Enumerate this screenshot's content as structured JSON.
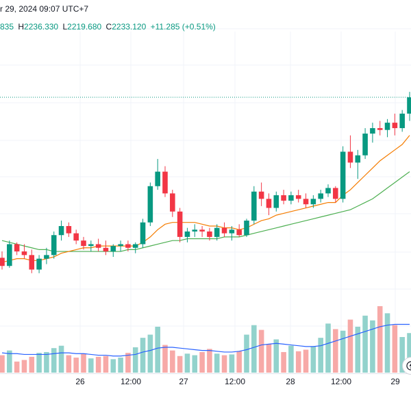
{
  "header": {
    "date_text": "r 29, 2024 09:07 UTC+7",
    "open_text": "835",
    "high_label": "H",
    "high_value": "2236.330",
    "low_label": "L",
    "low_value": "2219.680",
    "close_label": "C",
    "close_value": "2233.120",
    "change_text": "+11.285 (+0.51%)"
  },
  "colors": {
    "up": "#089981",
    "down": "#f23645",
    "vol_up": "#92d2cc",
    "vol_down": "#f7a9a7",
    "ma_fast": "#f57c00",
    "ma_slow": "#4caf50",
    "vol_ma": "#2962ff",
    "grid": "#f0f3fa",
    "price_line": "#089981"
  },
  "x_axis": {
    "labels": [
      "26",
      "12:00",
      "27",
      "12:00",
      "28",
      "12:00",
      "29"
    ]
  },
  "chart_data": {
    "type": "candlestick",
    "series": [
      {
        "name": "candles",
        "ohlc": [
          [
            2176.5,
            2180,
            2170,
            2172
          ],
          [
            2172,
            2186,
            2171,
            2184
          ],
          [
            2184,
            2185,
            2178,
            2180
          ],
          [
            2180,
            2184,
            2176,
            2178
          ],
          [
            2178,
            2181,
            2168,
            2170
          ],
          [
            2170,
            2178,
            2168,
            2176
          ],
          [
            2176,
            2182,
            2173,
            2178
          ],
          [
            2178,
            2191,
            2176,
            2189
          ],
          [
            2189,
            2197,
            2186,
            2194
          ],
          [
            2194,
            2196,
            2188,
            2190
          ],
          [
            2190,
            2192,
            2184,
            2186
          ],
          [
            2186,
            2188,
            2181,
            2183
          ],
          [
            2183,
            2186,
            2180,
            2184
          ],
          [
            2184,
            2187,
            2180,
            2182
          ],
          [
            2182,
            2186,
            2178,
            2180
          ],
          [
            2180,
            2184,
            2177,
            2183
          ],
          [
            2183,
            2186,
            2180,
            2184
          ],
          [
            2184,
            2186,
            2180,
            2182
          ],
          [
            2182,
            2185,
            2179,
            2184
          ],
          [
            2184,
            2198,
            2182,
            2196
          ],
          [
            2196,
            2218,
            2194,
            2216
          ],
          [
            2216,
            2231,
            2214,
            2224
          ],
          [
            2224,
            2227,
            2210,
            2212
          ],
          [
            2212,
            2214,
            2199,
            2202
          ],
          [
            2202,
            2204,
            2185,
            2188
          ],
          [
            2188,
            2193,
            2185,
            2191
          ],
          [
            2191,
            2195,
            2188,
            2192
          ],
          [
            2192,
            2194,
            2188,
            2191
          ],
          [
            2191,
            2193,
            2186,
            2188
          ],
          [
            2188,
            2195,
            2186,
            2193
          ],
          [
            2193,
            2196,
            2188,
            2190
          ],
          [
            2190,
            2194,
            2186,
            2192
          ],
          [
            2192,
            2195,
            2188,
            2189
          ],
          [
            2189,
            2198,
            2188,
            2197
          ],
          [
            2197,
            2216,
            2195,
            2213
          ],
          [
            2213,
            2218,
            2205,
            2209
          ],
          [
            2209,
            2212,
            2200,
            2204
          ],
          [
            2204,
            2213,
            2202,
            2211
          ],
          [
            2211,
            2214,
            2206,
            2208
          ],
          [
            2208,
            2213,
            2206,
            2211
          ],
          [
            2211,
            2214,
            2207,
            2209
          ],
          [
            2209,
            2212,
            2204,
            2206
          ],
          [
            2206,
            2211,
            2204,
            2209
          ],
          [
            2209,
            2214,
            2207,
            2212
          ],
          [
            2212,
            2217,
            2210,
            2215
          ],
          [
            2215,
            2216,
            2207,
            2209
          ],
          [
            2209,
            2238,
            2207,
            2235
          ],
          [
            2235,
            2244,
            2226,
            2229
          ],
          [
            2229,
            2236,
            2220,
            2233
          ],
          [
            2233,
            2248,
            2231,
            2245
          ],
          [
            2245,
            2251,
            2240,
            2248
          ],
          [
            2248,
            2252,
            2244,
            2247
          ],
          [
            2247,
            2253,
            2243,
            2251
          ],
          [
            2251,
            2256,
            2244,
            2248
          ],
          [
            2248,
            2258,
            2246,
            2256
          ],
          [
            2256,
            2268,
            2252,
            2265
          ]
        ]
      },
      {
        "name": "volume",
        "values": [
          22,
          28,
          14,
          16,
          20,
          25,
          26,
          31,
          34,
          22,
          19,
          24,
          18,
          20,
          21,
          17,
          19,
          25,
          32,
          44,
          48,
          58,
          35,
          28,
          21,
          24,
          22,
          26,
          30,
          24,
          22,
          23,
          27,
          48,
          60,
          54,
          36,
          42,
          26,
          34,
          27,
          29,
          33,
          44,
          62,
          55,
          53,
          67,
          58,
          72,
          66,
          84,
          75,
          60,
          45,
          50
        ]
      },
      {
        "name": "ma_fast",
        "values": [
          2174,
          2175,
          2176,
          2176,
          2175,
          2175,
          2176,
          2177,
          2179,
          2180,
          2181,
          2182,
          2182,
          2183,
          2183,
          2183,
          2183,
          2183,
          2183,
          2185,
          2188,
          2192,
          2195,
          2196,
          2196,
          2196,
          2196,
          2195,
          2194,
          2194,
          2193,
          2193,
          2192,
          2193,
          2195,
          2197,
          2198,
          2200,
          2201,
          2202,
          2203,
          2204,
          2205,
          2206,
          2207,
          2207,
          2211,
          2214,
          2218,
          2222,
          2226,
          2230,
          2233,
          2236,
          2239,
          2244
        ]
      },
      {
        "name": "ma_slow",
        "values": [
          2186,
          2185,
          2184,
          2183,
          2182,
          2181,
          2181,
          2180,
          2180,
          2180,
          2180,
          2180,
          2180,
          2180,
          2180,
          2180,
          2180,
          2181,
          2181,
          2182,
          2183,
          2184,
          2185,
          2186,
          2186,
          2187,
          2187,
          2187,
          2187,
          2187,
          2188,
          2188,
          2188,
          2189,
          2190,
          2191,
          2192,
          2193,
          2194,
          2195,
          2196,
          2197,
          2198,
          2199,
          2200,
          2201,
          2202,
          2203,
          2205,
          2207,
          2209,
          2212,
          2215,
          2218,
          2221,
          2224
        ]
      },
      {
        "name": "vol_ma",
        "values": [
          25,
          24,
          24,
          23,
          23,
          23,
          23,
          24,
          25,
          25,
          24,
          24,
          23,
          22,
          22,
          21,
          21,
          22,
          23,
          26,
          28,
          31,
          32,
          32,
          31,
          30,
          29,
          28,
          28,
          27,
          26,
          26,
          27,
          29,
          32,
          35,
          36,
          37,
          36,
          35,
          34,
          33,
          33,
          34,
          37,
          40,
          43,
          46,
          49,
          52,
          55,
          58,
          60,
          61,
          61,
          61
        ]
      }
    ]
  }
}
